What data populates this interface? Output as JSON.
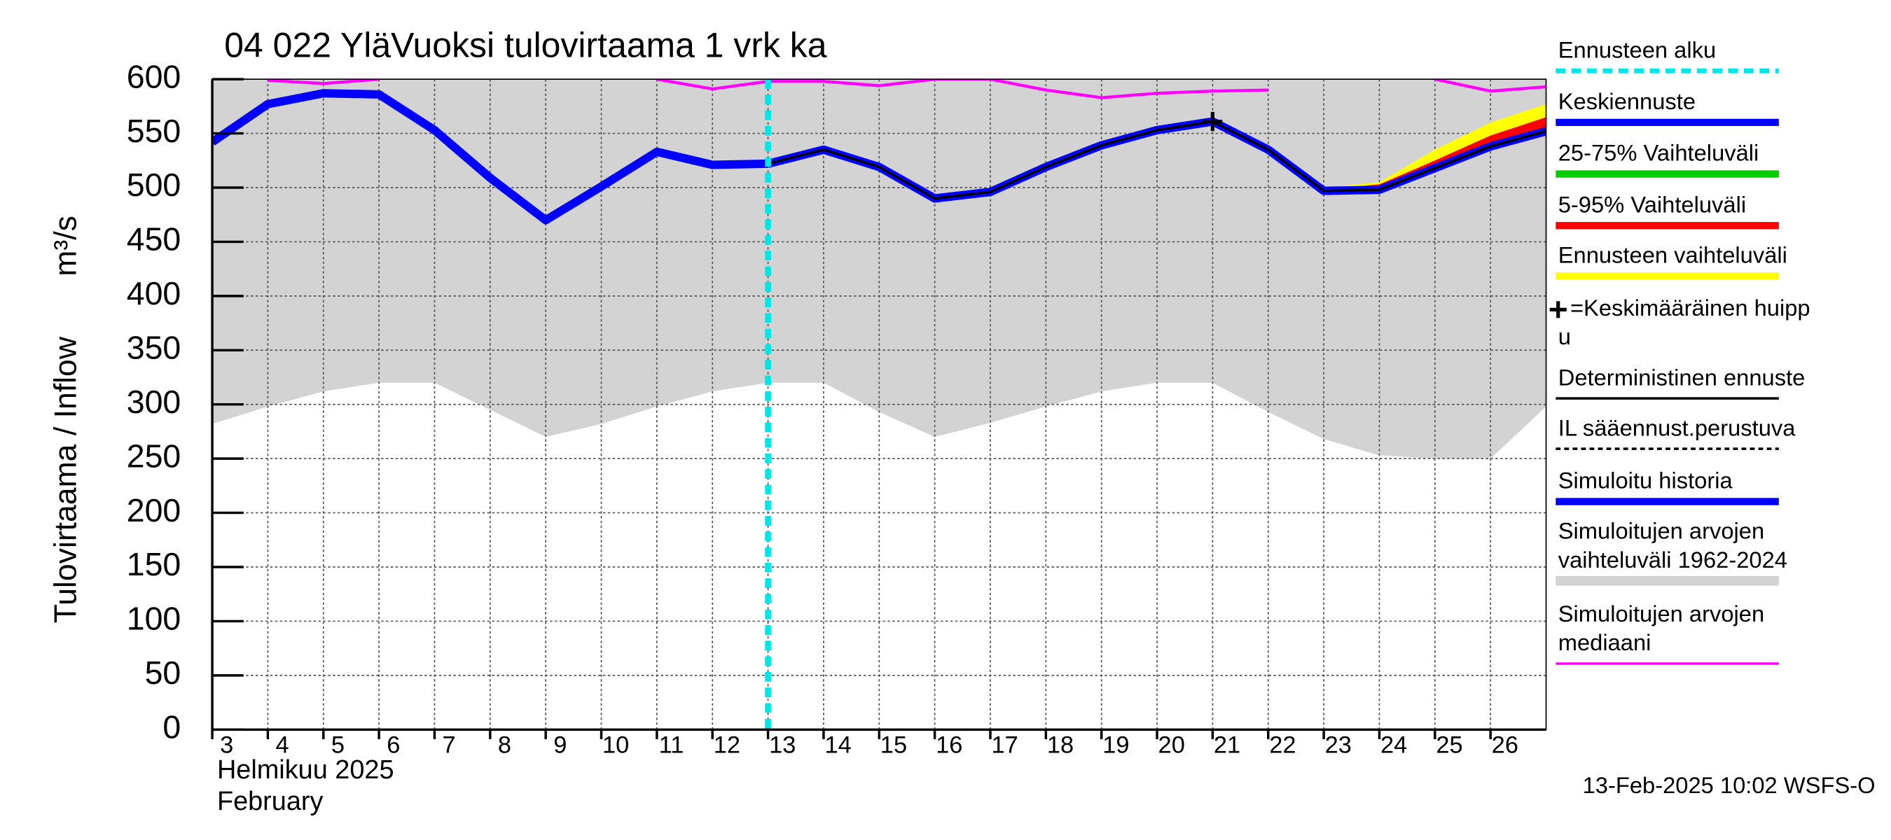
{
  "chart_data": {
    "type": "line",
    "title": "04 022 YläVuoksi tulovirtaama 1 vrk ka",
    "ylabel": "Tulovirtaama / Inflow",
    "yunit": "m³/s",
    "xlabel_lines": [
      "Helmikuu  2025",
      "February"
    ],
    "footer": "13-Feb-2025 10:02 WSFS-O",
    "x": [
      3,
      4,
      5,
      6,
      7,
      8,
      9,
      10,
      11,
      12,
      13,
      14,
      15,
      16,
      17,
      18,
      19,
      20,
      21,
      22,
      23,
      24,
      25,
      26,
      27
    ],
    "xlim": [
      3,
      27
    ],
    "xticks": [
      3,
      4,
      5,
      6,
      7,
      8,
      9,
      10,
      11,
      12,
      13,
      14,
      15,
      16,
      17,
      18,
      19,
      20,
      21,
      22,
      23,
      24,
      25,
      26
    ],
    "ylim": [
      0,
      600
    ],
    "yticks": [
      0,
      50,
      100,
      150,
      200,
      250,
      300,
      350,
      400,
      450,
      500,
      550,
      600
    ],
    "grid": true,
    "series": [
      {
        "name": [
          "Ennusteen alku"
        ],
        "color": "#00e5e5",
        "kind": "vline",
        "x": 13
      },
      {
        "name": [
          "Keskiennuste"
        ],
        "color": "#0000ff",
        "kind": "line",
        "values": [
          null,
          null,
          null,
          null,
          null,
          null,
          null,
          null,
          null,
          null,
          522,
          535,
          519,
          490,
          496,
          519,
          539,
          553,
          561,
          535,
          497,
          498,
          518,
          538,
          552
        ]
      },
      {
        "name": [
          "25-75% Vaihteluväli"
        ],
        "color": "#00cc00",
        "kind": "none"
      },
      {
        "name": [
          "5-95% Vaihteluväli"
        ],
        "color": "#ff0000",
        "kind": "band",
        "lower": [
          null,
          null,
          null,
          null,
          null,
          null,
          null,
          null,
          null,
          null,
          null,
          null,
          null,
          null,
          null,
          null,
          null,
          null,
          null,
          null,
          497,
          497,
          517,
          537,
          551
        ],
        "upper": [
          null,
          null,
          null,
          null,
          null,
          null,
          null,
          null,
          null,
          null,
          null,
          null,
          null,
          null,
          null,
          null,
          null,
          null,
          null,
          null,
          498,
          503,
          525,
          548,
          565
        ]
      },
      {
        "name": [
          "Ennusteen vaihteluväli"
        ],
        "color": "#ffff00",
        "kind": "band",
        "lower": [
          null,
          null,
          null,
          null,
          null,
          null,
          null,
          null,
          null,
          null,
          null,
          null,
          null,
          null,
          null,
          null,
          null,
          null,
          null,
          null,
          496,
          496,
          515,
          535,
          549
        ],
        "upper": [
          null,
          null,
          null,
          null,
          null,
          null,
          null,
          null,
          null,
          null,
          null,
          null,
          null,
          null,
          null,
          null,
          null,
          null,
          null,
          null,
          500,
          505,
          535,
          560,
          577
        ]
      },
      {
        "name": [
          "=Keskimääräinen huipp",
          "u"
        ],
        "color": "#000000",
        "kind": "marker",
        "x": 21,
        "value": 561
      },
      {
        "name": [
          "Deterministinen ennuste"
        ],
        "color": "#000000",
        "kind": "line",
        "values": [
          null,
          null,
          null,
          null,
          null,
          null,
          null,
          null,
          null,
          null,
          522,
          535,
          519,
          490,
          496,
          519,
          539,
          553,
          561,
          535,
          497,
          498,
          518,
          538,
          552
        ]
      },
      {
        "name": [
          "IL sääennust.perustuva"
        ],
        "color": "#000000",
        "kind": "none"
      },
      {
        "name": [
          "Simuloitu historia"
        ],
        "color": "#0000ff",
        "kind": "line",
        "values": [
          542,
          577,
          587,
          586,
          553,
          509,
          470,
          501,
          533,
          521,
          522,
          null,
          null,
          null,
          null,
          null,
          null,
          null,
          null,
          null,
          null,
          null,
          null,
          null,
          null
        ]
      },
      {
        "name": [
          "Simuloitujen arvojen",
          "vaihteluväli 1962-2024"
        ],
        "color": "#d3d3d3",
        "kind": "band",
        "lower": [
          282,
          298,
          312,
          320,
          320,
          295,
          270,
          282,
          298,
          312,
          320,
          320,
          293,
          270,
          283,
          298,
          312,
          320,
          320,
          293,
          268,
          253,
          250,
          250,
          298
        ],
        "upper": [
          600,
          600,
          600,
          600,
          600,
          600,
          600,
          600,
          600,
          600,
          600,
          600,
          600,
          600,
          600,
          600,
          600,
          600,
          600,
          600,
          600,
          600,
          600,
          600,
          600
        ]
      },
      {
        "name": [
          "Simuloitujen arvojen",
          "mediaani"
        ],
        "color": "#ff00ff",
        "kind": "line",
        "values": [
          null,
          599,
          596,
          600,
          null,
          null,
          null,
          null,
          600,
          591,
          598,
          598,
          594,
          600,
          600,
          590,
          583,
          587,
          589,
          590,
          null,
          null,
          600,
          589,
          593
        ]
      }
    ]
  }
}
